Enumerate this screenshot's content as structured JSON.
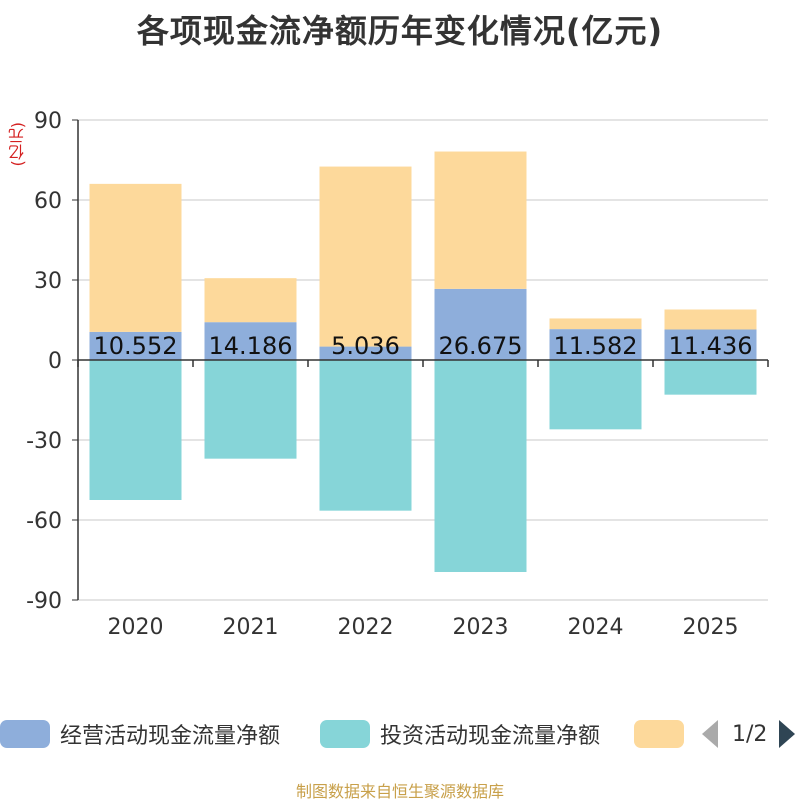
{
  "chart_data": {
    "type": "bar",
    "title": "各项现金流净额历年变化情况(亿元)",
    "ylabel": "(亿元)",
    "xlabel": "",
    "categories": [
      "2020",
      "2021",
      "2022",
      "2023",
      "2024",
      "2025"
    ],
    "ylim": [
      -90,
      90
    ],
    "yticks": [
      90,
      60,
      30,
      0,
      -30,
      -60,
      -90
    ],
    "grid": true,
    "stacked": true,
    "series": [
      {
        "name": "经营活动现金流量净额",
        "color": "#8eaedb",
        "values": [
          10.552,
          14.186,
          5.036,
          26.675,
          11.582,
          11.436
        ],
        "labels": [
          "10.552",
          "14.186",
          "5.036",
          "26.675",
          "11.582",
          "11.436"
        ]
      },
      {
        "name": "投资活动现金流量净额",
        "color": "#86d5d8",
        "values": [
          -52.5,
          -37.0,
          -56.5,
          -79.5,
          -26.0,
          -13.0
        ]
      },
      {
        "name": "",
        "color": "#fdd99b",
        "values": [
          55.5,
          16.5,
          67.5,
          51.5,
          4.0,
          7.5
        ]
      }
    ],
    "legend_page": "1/2",
    "source": "制图数据来自恒生聚源数据库"
  }
}
